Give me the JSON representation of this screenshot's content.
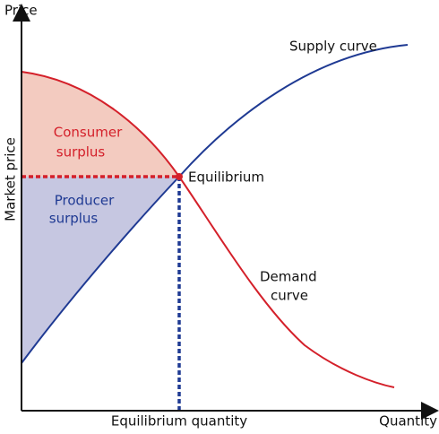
{
  "axes": {
    "y_label": "Price",
    "x_label": "Quantity",
    "market_price": "Market price",
    "equilibrium_quantity": "Equilibrium quantity"
  },
  "curves": {
    "supply": "Supply curve",
    "demand": [
      "Demand",
      "curve"
    ]
  },
  "regions": {
    "consumer": [
      "Consumer",
      "surplus"
    ],
    "producer": [
      "Producer",
      "surplus"
    ]
  },
  "point": "Equilibrium"
}
